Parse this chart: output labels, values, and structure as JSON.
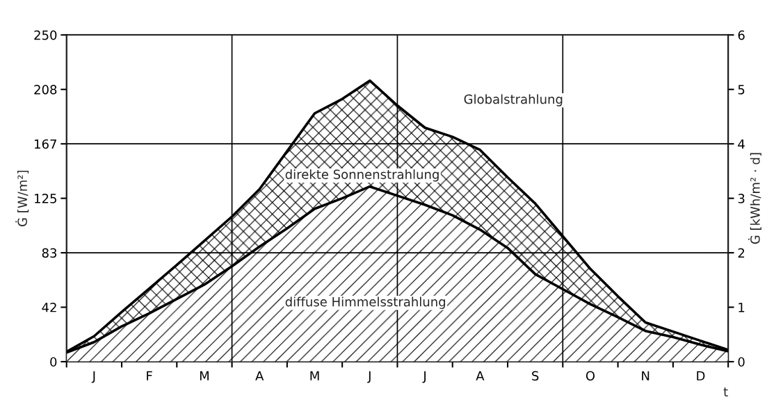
{
  "chart_data": {
    "type": "area",
    "xlabel": "t",
    "ylabel": "Ġ [W/m²]",
    "y2label": "Ġ [kWh/m² · d]",
    "categories": [
      null,
      "J",
      null,
      "F",
      null,
      "M",
      null,
      "A",
      null,
      "M",
      null,
      "J",
      null,
      "J",
      null,
      "A",
      null,
      "S",
      null,
      "O",
      null,
      "N",
      null,
      "D",
      null
    ],
    "ylim": [
      0,
      250
    ],
    "y2lim": [
      0,
      6
    ],
    "yticks": [
      0,
      {
        "value": 41.67,
        "label": "42"
      },
      {
        "value": 83.33,
        "label": "83"
      },
      125,
      {
        "value": 166.67,
        "label": "167"
      },
      {
        "value": 208.33,
        "label": "208"
      },
      250
    ],
    "y2ticks": [
      0,
      1,
      2,
      3,
      4,
      5,
      6
    ],
    "series": [
      {
        "color": "#000000",
        "values": [
          7.6,
          19.5,
          38,
          56,
          74,
          92.5,
          111,
          132,
          161,
          190,
          201,
          215,
          196,
          179,
          172,
          162,
          141,
          121,
          96,
          71,
          50,
          30,
          23,
          16,
          9
        ]
      },
      {
        "color": "#000000",
        "values": [
          7,
          15,
          27,
          37,
          48,
          59,
          73,
          88,
          102,
          117,
          125,
          134,
          127,
          120,
          112,
          101,
          87,
          67,
          55.5,
          44,
          34,
          23.5,
          18.8,
          13,
          7.9
        ]
      }
    ],
    "grid": true,
    "annotations": [
      "Globalstrahlung",
      "direkte Sonnenstrahlung",
      "diffuse Himmelsstrahlung"
    ]
  }
}
